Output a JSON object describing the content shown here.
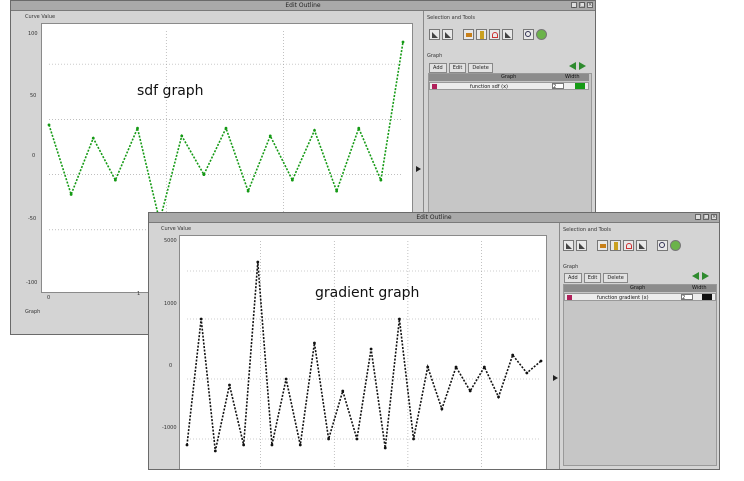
{
  "windows": [
    {
      "id": "win1",
      "title": "Edit Outline",
      "curve_value_label": "Curve Value",
      "overlay_label": "sdf graph",
      "y_ticks": [
        "100",
        "50",
        "0",
        "-50",
        "-100"
      ],
      "x_ticks": [
        "0",
        "1"
      ],
      "bottom_label": "Graph",
      "panel": {
        "toolbar_label": "Selection and Tools",
        "graph_label": "Graph",
        "tabs": [
          "Add",
          "Edit",
          "Delete"
        ],
        "table_header": [
          "Graph",
          "Width"
        ],
        "row": {
          "name": "function sdf (x)",
          "width": "2"
        },
        "series_color": "#159a15"
      },
      "chart_data": {
        "type": "line",
        "series": [
          {
            "color": "#159a15",
            "x": [
              0,
              1,
              2,
              3,
              4,
              5,
              6,
              7,
              8,
              9,
              10,
              11,
              12,
              13,
              14,
              15,
              16
            ],
            "y": [
              45,
              -18,
              33,
              -5,
              42,
              -42,
              35,
              0,
              42,
              -15,
              35,
              -5,
              40,
              -15,
              42,
              -5,
              120
            ]
          }
        ]
      }
    },
    {
      "id": "win2",
      "title": "Edit Outline",
      "curve_value_label": "Curve Value",
      "overlay_label": "gradient graph",
      "y_ticks": [
        "5000",
        "1000",
        "0",
        "-1000"
      ],
      "panel": {
        "toolbar_label": "Selection and Tools",
        "graph_label": "Graph",
        "tabs": [
          "Add",
          "Edit",
          "Delete"
        ],
        "table_header": [
          "Graph",
          "Width"
        ],
        "row": {
          "name": "function gradient (x)",
          "width": "2"
        },
        "series_color": "#111111"
      },
      "chart_data": {
        "type": "line",
        "series": [
          {
            "color": "#111111",
            "x": [
              0,
              1,
              2,
              3,
              4,
              5,
              6,
              7,
              8,
              9,
              10,
              11,
              12,
              13,
              14,
              15,
              16,
              17,
              18,
              19,
              20,
              21,
              22,
              23,
              24,
              25
            ],
            "y": [
              -1100,
              1000,
              -1200,
              -100,
              -1100,
              1950,
              -1100,
              0,
              -1100,
              600,
              -1000,
              -200,
              -1000,
              500,
              -1150,
              1000,
              -1000,
              200,
              -500,
              200,
              -200,
              200,
              -300,
              400,
              100,
              300
            ]
          }
        ]
      }
    }
  ]
}
